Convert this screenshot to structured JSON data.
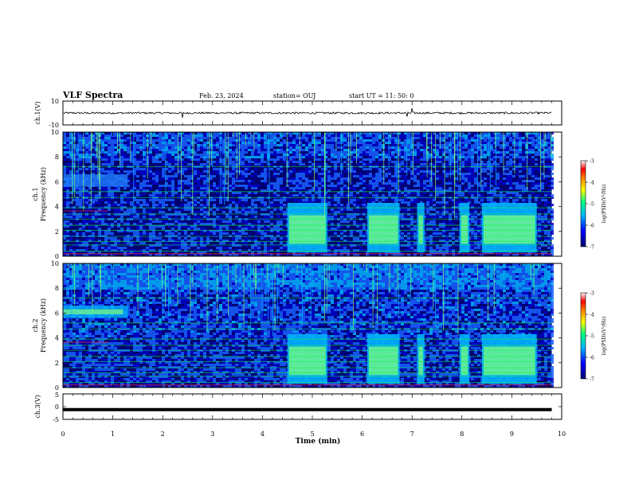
{
  "chart_data": [
    {
      "type": "line",
      "panel": "header",
      "title": "VLF Spectra",
      "date": "Feb. 23, 2024",
      "station": "station= OUJ",
      "start": "start  UT  =   11: 50: 0"
    },
    {
      "type": "line",
      "panel": "ch1-waveform",
      "ylabel": "ch.1(V)",
      "ylim": [
        -10,
        10
      ],
      "yticks": [
        "10",
        "-10"
      ],
      "mean_level_V": 0,
      "spikes": [
        {
          "t": 2.4,
          "v": -4
        },
        {
          "t": 6.9,
          "v": -3
        },
        {
          "t": 7.0,
          "v": 4
        }
      ]
    },
    {
      "type": "heatmap",
      "panel": "ch1-spectrogram",
      "ylabel": "ch.1 Frequency (kHz)",
      "ylim": [
        0,
        10
      ],
      "yticks": [
        "0",
        "2",
        "4",
        "6",
        "8",
        "10"
      ],
      "colorbar": {
        "label": "log(PSD)(V²/Hz)",
        "range": [
          -7,
          -3
        ],
        "ticks": [
          "-3",
          "-4",
          "-5",
          "-6",
          "-7"
        ]
      },
      "hiss_blocks_min": [
        [
          4.5,
          5.3
        ],
        [
          6.1,
          6.75
        ],
        [
          7.1,
          7.25
        ],
        [
          7.95,
          8.15
        ],
        [
          8.4,
          9.5
        ]
      ],
      "band_6kHz_until_min": 1.3
    },
    {
      "type": "heatmap",
      "panel": "ch2-spectrogram",
      "ylabel": "ch.2 Frequency (kHz)",
      "ylim": [
        0,
        10
      ],
      "yticks": [
        "0",
        "2",
        "4",
        "6",
        "8",
        "10"
      ],
      "colorbar": {
        "label": "log(PSD)(V²/Hz)",
        "range": [
          -7,
          -3
        ],
        "ticks": [
          "-3",
          "-4",
          "-5",
          "-6",
          "-7"
        ]
      },
      "hiss_blocks_min": [
        [
          4.5,
          5.3
        ],
        [
          6.1,
          6.75
        ],
        [
          7.1,
          7.25
        ],
        [
          7.95,
          8.15
        ],
        [
          8.4,
          9.5
        ]
      ],
      "band_6kHz_until_min": 1.3
    },
    {
      "type": "line",
      "panel": "ch3-waveform",
      "ylabel": "ch.3(V)",
      "ylim": [
        -5,
        5
      ],
      "yticks": [
        "5",
        "0",
        "-5"
      ],
      "mean_level_V": -1.2
    }
  ],
  "x_axis": {
    "xlabel": "Time  (min)",
    "xlim": [
      0,
      10
    ],
    "ticks": [
      "0",
      "1",
      "2",
      "3",
      "4",
      "5",
      "6",
      "7",
      "8",
      "9",
      "10"
    ],
    "data_end_min": 9.8
  },
  "colors": {
    "background_dark": "#000080",
    "low": "#0000c8",
    "mid": "#00b4ff",
    "hiss": "#7dff7d",
    "line_green": "#00ff40",
    "line_red": "#ff2020",
    "colorbar_stops": [
      "#000070",
      "#0000ff",
      "#00b4ff",
      "#00ff80",
      "#ffff00",
      "#ff8000",
      "#ff0000",
      "#ffffff"
    ]
  }
}
